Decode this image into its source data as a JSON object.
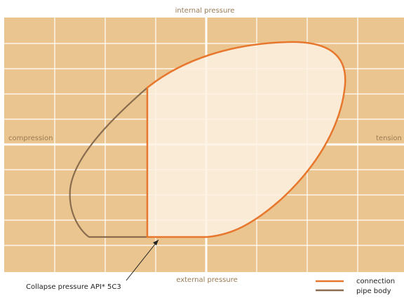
{
  "labels": {
    "top": "internal pressure",
    "bottom": "external pressure",
    "left": "compression",
    "right": "tension"
  },
  "annotation": "Collapse pressure API* 5C3",
  "legend": [
    "connection",
    "pipe body"
  ]
}
